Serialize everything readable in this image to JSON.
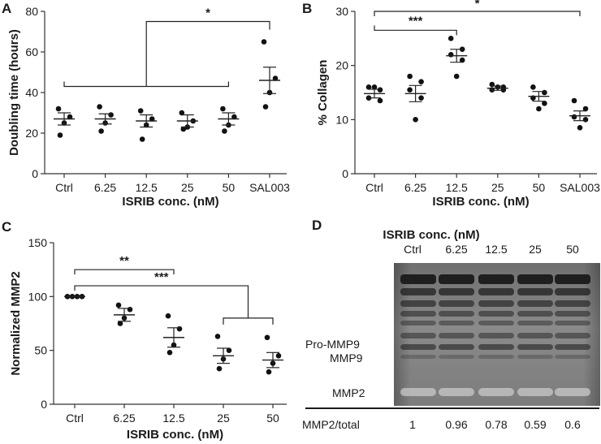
{
  "chart_data": [
    {
      "panel": "A",
      "type": "scatter",
      "categories": [
        "Ctrl",
        "6.25",
        "12.5",
        "25",
        "50",
        "SAL003"
      ],
      "xlabel": "ISRIB conc. (nM)",
      "ylabel": "Doubling time (hours)",
      "ylim": [
        0,
        80
      ],
      "yticks": [
        0,
        20,
        40,
        60,
        80
      ],
      "points": [
        [
          32,
          28,
          25,
          19
        ],
        [
          33,
          29,
          25,
          21
        ],
        [
          31,
          27,
          24,
          17
        ],
        [
          30,
          26,
          23,
          22
        ],
        [
          32,
          28,
          24,
          21
        ],
        [
          65,
          47,
          40,
          33
        ]
      ],
      "mean": [
        27,
        27,
        26,
        26,
        27,
        46
      ],
      "sem": [
        3,
        2.5,
        3,
        3,
        3,
        6.5
      ],
      "significance": [
        {
          "label": "*",
          "groups": [
            "Ctrl-50",
            "SAL003"
          ]
        }
      ]
    },
    {
      "panel": "B",
      "type": "scatter",
      "categories": [
        "Ctrl",
        "6.25",
        "12.5",
        "25",
        "50",
        "SAL003"
      ],
      "xlabel": "ISRIB conc. (nM)",
      "ylabel": "% Collagen",
      "ylim": [
        0,
        30
      ],
      "yticks": [
        0,
        10,
        20,
        30
      ],
      "points": [
        [
          16,
          15.5,
          14,
          13.5,
          16
        ],
        [
          18,
          17,
          15.5,
          14,
          10
        ],
        [
          25,
          23,
          22,
          21,
          18
        ],
        [
          16.5,
          16,
          15.5,
          15.5,
          16
        ],
        [
          16,
          15,
          14,
          13,
          12
        ],
        [
          13.5,
          12,
          10.5,
          10,
          8.5
        ]
      ],
      "mean": [
        14.8,
        14.8,
        21.8,
        15.8,
        14.3,
        10.7
      ],
      "sem": [
        0.8,
        1.5,
        1.2,
        0.4,
        0.9,
        0.9
      ],
      "significance": [
        {
          "label": "***",
          "groups": [
            "Ctrl",
            "12.5"
          ]
        },
        {
          "label": "*",
          "groups": [
            "Ctrl",
            "SAL003"
          ]
        }
      ]
    },
    {
      "panel": "C",
      "type": "scatter",
      "categories": [
        "Ctrl",
        "6.25",
        "12.5",
        "25",
        "50"
      ],
      "xlabel": "ISRIB conc. (nM)",
      "ylabel": "Normalized MMP2",
      "ylim": [
        0,
        150
      ],
      "yticks": [
        0,
        50,
        100,
        150
      ],
      "points": [
        [
          100,
          100,
          100,
          100
        ],
        [
          92,
          88,
          80,
          75
        ],
        [
          82,
          70,
          55,
          48
        ],
        [
          63,
          50,
          42,
          33
        ],
        [
          62,
          45,
          38,
          30
        ]
      ],
      "mean": [
        100,
        83,
        62,
        45,
        41
      ],
      "sem": [
        0,
        6,
        9,
        7,
        7
      ],
      "significance": [
        {
          "label": "**",
          "groups": [
            "Ctrl",
            "12.5"
          ]
        },
        {
          "label": "***",
          "groups": [
            "Ctrl",
            "25-50"
          ]
        }
      ]
    }
  ],
  "panels": {
    "A": "A",
    "B": "B",
    "C": "C",
    "D": "D"
  },
  "gel": {
    "title": "ISRIB conc. (nM)",
    "lanes": [
      "Ctrl",
      "6.25",
      "12.5",
      "25",
      "50"
    ],
    "band_labels": [
      "Pro-MMP9",
      "MMP9",
      "MMP2"
    ],
    "ratio_label": "MMP2/total",
    "ratios": [
      "1",
      "0.96",
      "0.78",
      "0.59",
      "0.6"
    ]
  }
}
